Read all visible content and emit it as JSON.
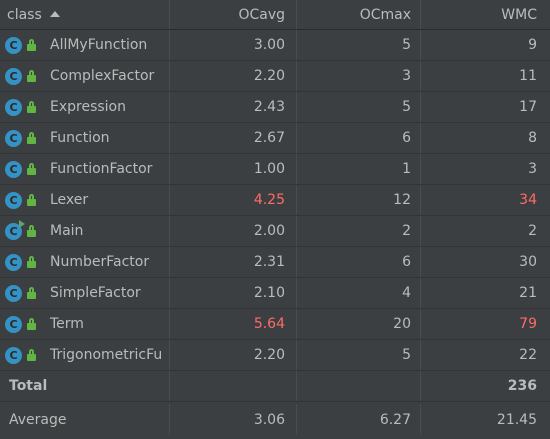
{
  "columns": [
    "class",
    "OCavg",
    "OCmax",
    "WMC"
  ],
  "rows": [
    {
      "name": "AllMyFunction",
      "ocavg": "3.00",
      "ocmax": "5",
      "wmc": "9"
    },
    {
      "name": "ComplexFactor",
      "ocavg": "2.20",
      "ocmax": "3",
      "wmc": "11"
    },
    {
      "name": "Expression",
      "ocavg": "2.43",
      "ocmax": "5",
      "wmc": "17"
    },
    {
      "name": "Function",
      "ocavg": "2.67",
      "ocmax": "6",
      "wmc": "8"
    },
    {
      "name": "FunctionFactor",
      "ocavg": "1.00",
      "ocmax": "1",
      "wmc": "3"
    },
    {
      "name": "Lexer",
      "ocavg": "4.25",
      "ocmax": "12",
      "wmc": "34"
    },
    {
      "name": "Main",
      "ocavg": "2.00",
      "ocmax": "2",
      "wmc": "2"
    },
    {
      "name": "NumberFactor",
      "ocavg": "2.31",
      "ocmax": "6",
      "wmc": "30"
    },
    {
      "name": "SimpleFactor",
      "ocavg": "2.10",
      "ocmax": "4",
      "wmc": "21"
    },
    {
      "name": "Term",
      "ocavg": "5.64",
      "ocmax": "20",
      "wmc": "79"
    },
    {
      "name": "TrigonometricFu",
      "ocavg": "2.20",
      "ocmax": "5",
      "wmc": "22"
    }
  ],
  "icon_letter": "C",
  "total": {
    "label": "Total",
    "ocavg": "",
    "ocmax": "",
    "wmc": "236"
  },
  "average": {
    "label": "Average",
    "ocavg": "3.06",
    "ocmax": "6.27",
    "wmc": "21.45"
  },
  "colors": {
    "background": "#3c3f41",
    "text": "#bbbbbb",
    "warning": "#ff6b68",
    "class_icon": "#3592c4",
    "lock_icon": "#62b543"
  }
}
